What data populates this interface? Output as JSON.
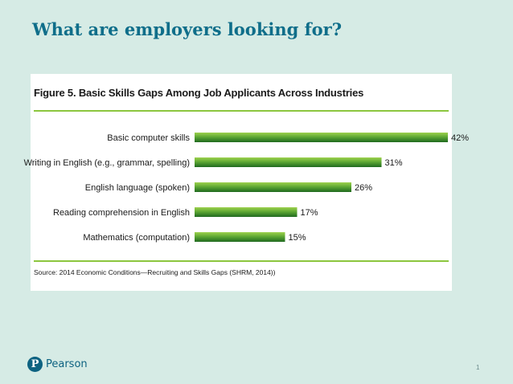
{
  "slide": {
    "title": "What are employers looking for?",
    "page_number": "1",
    "brand": {
      "name": "Pearson",
      "mark": "P",
      "icon": "pearson-logo-icon"
    }
  },
  "colors": {
    "background": "#d6ebe5",
    "title": "#0f6e8a",
    "bar_light": "#8cc63e",
    "bar_dark": "#1f6a1f",
    "rule": "#8cc63e"
  },
  "chart_data": {
    "type": "bar",
    "orientation": "horizontal",
    "figure_label": "Figure 5.",
    "title": "Basic Skills Gaps Among Job Applicants Across Industries",
    "categories": [
      "Basic computer skills",
      "Writing in English (e.g., grammar, spelling)",
      "English language (spoken)",
      "Reading comprehension in English",
      "Mathematics (computation)"
    ],
    "values": [
      42,
      31,
      26,
      17,
      15
    ],
    "value_labels": [
      "42%",
      "31%",
      "26%",
      "17%",
      "15%"
    ],
    "xlim": [
      0,
      42
    ],
    "grid": false,
    "source": "Source: 2014 Economic Conditions—Recruiting and Skills Gaps (SHRM, 2014))"
  }
}
